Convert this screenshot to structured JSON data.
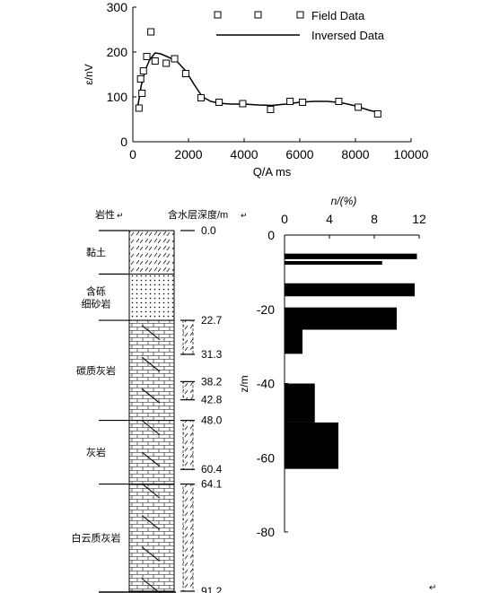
{
  "chart_data": [
    {
      "type": "scatter+line",
      "xlabel": "Q/A ms",
      "ylabel": "ε/nV",
      "xlim": [
        0,
        10000
      ],
      "ylim": [
        0,
        300
      ],
      "x_ticks": [
        "0",
        "2000",
        "4000",
        "6000",
        "8000",
        "10000"
      ],
      "y_ticks": [
        "0",
        "100",
        "200",
        "300"
      ],
      "legend": {
        "placement": "top-right",
        "entries": [
          "Field Data",
          "Inversed Data"
        ]
      },
      "series": [
        {
          "name": "Field Data",
          "style": "open-square",
          "x": [
            220,
            280,
            330,
            380,
            500,
            650,
            800,
            1200,
            1500,
            1900,
            2450,
            3100,
            3950,
            4950,
            5650,
            6100,
            7400,
            8100,
            8800
          ],
          "y": [
            75,
            140,
            108,
            158,
            190,
            245,
            180,
            175,
            185,
            152,
            98,
            88,
            85,
            72,
            90,
            88,
            90,
            77,
            62
          ]
        },
        {
          "name": "Inversed Data",
          "style": "line",
          "x": [
            180,
            300,
            450,
            600,
            800,
            1000,
            1300,
            1600,
            1900,
            2200,
            2500,
            2800,
            3100,
            3500,
            4000,
            4500,
            5000,
            5500,
            6000,
            6500,
            7000,
            7500,
            8000,
            8500,
            8800
          ],
          "y": [
            80,
            125,
            160,
            182,
            198,
            196,
            188,
            178,
            158,
            128,
            100,
            90,
            86,
            84,
            84,
            82,
            81,
            84,
            88,
            90,
            90,
            87,
            80,
            70,
            66
          ]
        }
      ]
    },
    {
      "type": "strip-log",
      "labels": [
        "岩性",
        "含水层深度/m"
      ],
      "lithology": [
        {
          "name": "黏土",
          "top": 0,
          "bottom": 11,
          "pattern": "clay"
        },
        {
          "name": "含砾\n细砂岩",
          "top": 11,
          "bottom": 22.7,
          "pattern": "sand"
        },
        {
          "name": "碳质灰岩",
          "top": 22.7,
          "bottom": 48.0,
          "pattern": "limestone"
        },
        {
          "name": "灰岩",
          "top": 48.0,
          "bottom": 64.1,
          "pattern": "limestone"
        },
        {
          "name": "白云质灰岩",
          "top": 64.1,
          "bottom": 91.2,
          "pattern": "limestone"
        }
      ],
      "aquifers": [
        {
          "top": 22.7,
          "bottom": 31.3
        },
        {
          "top": 38.2,
          "bottom": 42.8
        },
        {
          "top": 48.0,
          "bottom": 60.4
        },
        {
          "top": 64.1,
          "bottom": 91.2
        }
      ],
      "depth_labels": [
        "0.0",
        "22.7",
        "31.3",
        "38.2",
        "42.8",
        "48.0",
        "60.4",
        "64.1",
        "91.2"
      ]
    },
    {
      "type": "bar",
      "orientation": "horizontal",
      "xlabel": "n/(%)",
      "ylabel": "z/m",
      "xlim": [
        0,
        12
      ],
      "ylim": [
        0,
        -80
      ],
      "x_ticks": [
        "0",
        "4",
        "8",
        "12"
      ],
      "y_ticks": [
        "0",
        "-20",
        "-40",
        "-60",
        "-80"
      ],
      "bars": [
        {
          "top": -5,
          "bottom": -6.5,
          "value": 11.8
        },
        {
          "top": -7,
          "bottom": -8,
          "value": 8.7
        },
        {
          "top": -13,
          "bottom": -16.5,
          "value": 11.6
        },
        {
          "top": -19.5,
          "bottom": -25.5,
          "value": 10
        },
        {
          "top": -25.5,
          "bottom": -32,
          "value": 1.6
        },
        {
          "top": -40,
          "bottom": -50.5,
          "value": 2.7
        },
        {
          "top": -50.5,
          "bottom": -63,
          "value": 4.8
        }
      ]
    }
  ],
  "footer_mark": "↵"
}
